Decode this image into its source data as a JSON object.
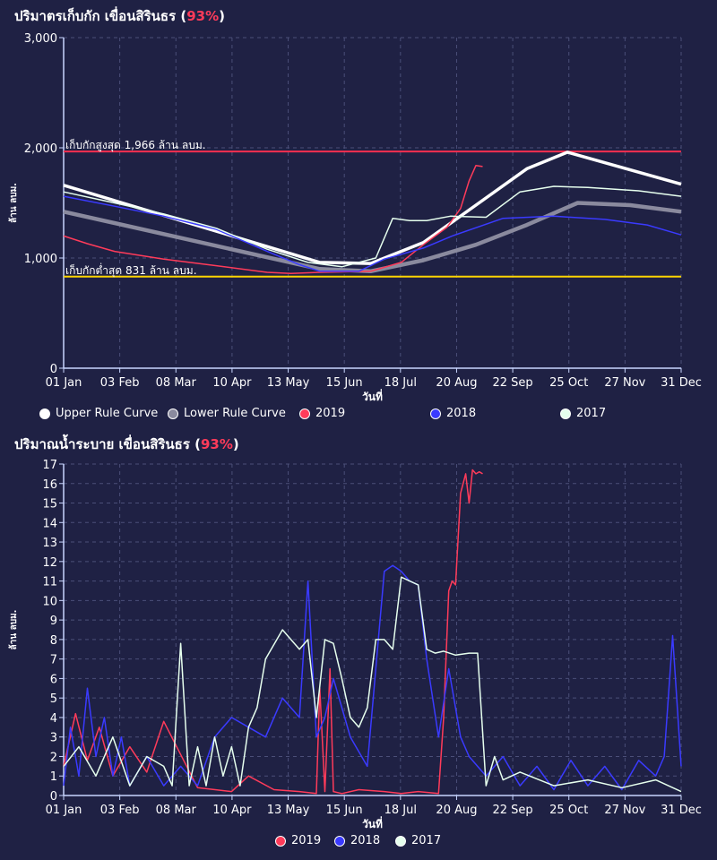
{
  "colors": {
    "background": "#1f2144",
    "grid": "#4b4f78",
    "axis": "#c9d6ff",
    "pct": "#ff3b5a",
    "upper": "#ffffff",
    "lower": "#8a8a9e",
    "y2019": "#ff3b5a",
    "y2018": "#3a3aff",
    "y2017": "#e6ffee",
    "max_line": "#ff2f4f",
    "min_line": "#ffd400"
  },
  "storage": {
    "title": "ปริมาตรเก็บกัก เขื่อนสิรินธร (",
    "pct": "93%",
    "title_end": ")",
    "ylabel": "ล้าน ลบม.",
    "xlabel": "วันที่",
    "max_label": "เก็บกักสูงสุด 1,966 ล้าน ลบม.",
    "min_label": "เก็บกักต่ำสุด 831 ล้าน ลบม.",
    "legend": [
      "Upper Rule Curve",
      "Lower Rule Curve",
      "2019",
      "2018",
      "2017"
    ]
  },
  "release": {
    "title": "ปริมาณน้ำระบาย เขื่อนสิรินธร (",
    "pct": "93%",
    "title_end": ")",
    "ylabel": "ล้าน ลบม.",
    "xlabel": "วันที่",
    "legend": [
      "2019",
      "2018",
      "2017"
    ]
  },
  "chart_data": [
    {
      "type": "line",
      "title": "ปริมาตรเก็บกัก เขื่อนสิรินธร (93%)",
      "xlabel": "วันที่",
      "ylabel": "ล้าน ลบม.",
      "x_ticks": [
        "01 Jan",
        "03 Feb",
        "08 Mar",
        "10 Apr",
        "13 May",
        "15 Jun",
        "18 Jul",
        "20 Aug",
        "22 Sep",
        "25 Oct",
        "27 Nov",
        "31 Dec"
      ],
      "y_ticks": [
        "0",
        "1,000",
        "2,000",
        "3,000"
      ],
      "ylim": [
        0,
        3000
      ],
      "xlim": [
        1,
        365
      ],
      "grid": true,
      "legend_position": "bottom",
      "hlines": [
        {
          "value": 1966,
          "label": "เก็บกักสูงสุด 1,966 ล้าน ลบม."
        },
        {
          "value": 831,
          "label": "เก็บกักต่ำสุด 831 ล้าน ลบม."
        }
      ],
      "series": [
        {
          "name": "Upper Rule Curve",
          "x": [
            1,
            152,
            182,
            213,
            244,
            274,
            298,
            365
          ],
          "y": [
            1660,
            960,
            950,
            1140,
            1480,
            1810,
            1960,
            1670
          ]
        },
        {
          "name": "Lower Rule Curve",
          "x": [
            1,
            152,
            182,
            213,
            244,
            274,
            304,
            335,
            365
          ],
          "y": [
            1420,
            900,
            880,
            980,
            1120,
            1300,
            1500,
            1480,
            1420
          ]
        },
        {
          "name": "2019",
          "x": [
            1,
            15,
            31,
            60,
            91,
            121,
            135,
            152,
            182,
            200,
            213,
            227,
            235,
            240,
            244,
            248
          ],
          "y": [
            1200,
            1130,
            1060,
            990,
            930,
            870,
            860,
            870,
            880,
            960,
            1120,
            1280,
            1450,
            1700,
            1840,
            1830
          ]
        },
        {
          "name": "2018",
          "x": [
            1,
            31,
            60,
            91,
            121,
            140,
            152,
            175,
            190,
            213,
            230,
            260,
            290,
            320,
            345,
            365
          ],
          "y": [
            1560,
            1470,
            1380,
            1260,
            1060,
            940,
            880,
            880,
            990,
            1090,
            1200,
            1360,
            1380,
            1350,
            1300,
            1210
          ]
        },
        {
          "name": "2017",
          "x": [
            1,
            31,
            60,
            91,
            121,
            145,
            165,
            185,
            195,
            205,
            215,
            229,
            250,
            270,
            290,
            310,
            340,
            365
          ],
          "y": [
            1600,
            1500,
            1400,
            1270,
            1080,
            960,
            920,
            1000,
            1360,
            1340,
            1340,
            1380,
            1370,
            1600,
            1650,
            1640,
            1610,
            1560
          ]
        }
      ]
    },
    {
      "type": "line",
      "title": "ปริมาณน้ำระบาย เขื่อนสิรินธร (93%)",
      "xlabel": "วันที่",
      "ylabel": "ล้าน ลบม.",
      "x_ticks": [
        "01 Jan",
        "03 Feb",
        "08 Mar",
        "10 Apr",
        "13 May",
        "15 Jun",
        "18 Jul",
        "20 Aug",
        "22 Sep",
        "25 Oct",
        "27 Nov",
        "31 Dec"
      ],
      "y_ticks": [
        "0",
        "1",
        "2",
        "3",
        "4",
        "5",
        "6",
        "7",
        "8",
        "9",
        "10",
        "11",
        "12",
        "13",
        "14",
        "15",
        "16",
        "17"
      ],
      "ylim": [
        0,
        17
      ],
      "xlim": [
        1,
        365
      ],
      "grid": true,
      "legend_position": "bottom",
      "series": [
        {
          "name": "2019",
          "x": [
            1,
            8,
            15,
            22,
            30,
            40,
            50,
            60,
            80,
            100,
            110,
            125,
            140,
            150,
            152,
            155,
            158,
            160,
            165,
            175,
            190,
            200,
            210,
            222,
            225,
            228,
            230,
            232,
            235,
            238,
            240,
            242,
            244,
            246,
            248
          ],
          "y": [
            1.5,
            4.2,
            1.8,
            3.5,
            1.0,
            2.5,
            1.2,
            3.8,
            0.4,
            0.2,
            1.0,
            0.3,
            0.2,
            0.1,
            5.5,
            0.2,
            6.5,
            0.2,
            0.1,
            0.3,
            0.2,
            0.1,
            0.2,
            0.1,
            4.0,
            10.5,
            11.0,
            10.8,
            15.5,
            16.5,
            15.0,
            16.7,
            16.5,
            16.6,
            16.5
          ]
        },
        {
          "name": "2018",
          "x": [
            1,
            5,
            10,
            15,
            20,
            25,
            30,
            35,
            40,
            50,
            60,
            70,
            80,
            90,
            100,
            110,
            120,
            130,
            140,
            145,
            150,
            155,
            160,
            170,
            180,
            190,
            195,
            200,
            205,
            210,
            215,
            222,
            228,
            235,
            240,
            250,
            260,
            270,
            280,
            290,
            300,
            310,
            320,
            330,
            340,
            350,
            355,
            360,
            365
          ],
          "y": [
            0.5,
            3.5,
            1.0,
            5.5,
            2.0,
            4.0,
            1.0,
            3.0,
            0.5,
            2.0,
            0.5,
            1.5,
            0.5,
            3.0,
            4.0,
            3.5,
            3.0,
            5.0,
            4.0,
            11.0,
            3.0,
            4.0,
            6.0,
            3.0,
            1.5,
            11.5,
            11.8,
            11.5,
            11.0,
            10.8,
            7.0,
            3.0,
            6.5,
            3.0,
            2.0,
            1.0,
            2.0,
            0.5,
            1.5,
            0.3,
            1.8,
            0.5,
            1.5,
            0.3,
            1.8,
            1.0,
            2.0,
            8.2,
            1.5
          ]
        },
        {
          "name": "2017",
          "x": [
            1,
            10,
            20,
            30,
            40,
            50,
            60,
            65,
            70,
            75,
            80,
            85,
            90,
            95,
            100,
            105,
            110,
            115,
            120,
            130,
            135,
            140,
            145,
            150,
            155,
            160,
            165,
            170,
            175,
            180,
            185,
            190,
            195,
            200,
            205,
            210,
            215,
            220,
            225,
            232,
            240,
            245,
            250,
            255,
            260,
            270,
            290,
            310,
            330,
            350,
            365
          ],
          "y": [
            1.5,
            2.5,
            1.0,
            3.0,
            0.5,
            2.0,
            1.5,
            0.5,
            7.8,
            0.5,
            2.5,
            0.5,
            3.0,
            1.0,
            2.5,
            0.5,
            3.5,
            4.5,
            7.0,
            8.5,
            8.0,
            7.5,
            8.0,
            4.0,
            8.0,
            7.8,
            6.0,
            4.0,
            3.5,
            4.5,
            8.0,
            8.0,
            7.5,
            11.2,
            11.0,
            10.8,
            7.5,
            7.3,
            7.4,
            7.2,
            7.3,
            7.3,
            0.5,
            2.0,
            0.8,
            1.2,
            0.5,
            0.8,
            0.4,
            0.8,
            0.2
          ]
        }
      ]
    }
  ]
}
